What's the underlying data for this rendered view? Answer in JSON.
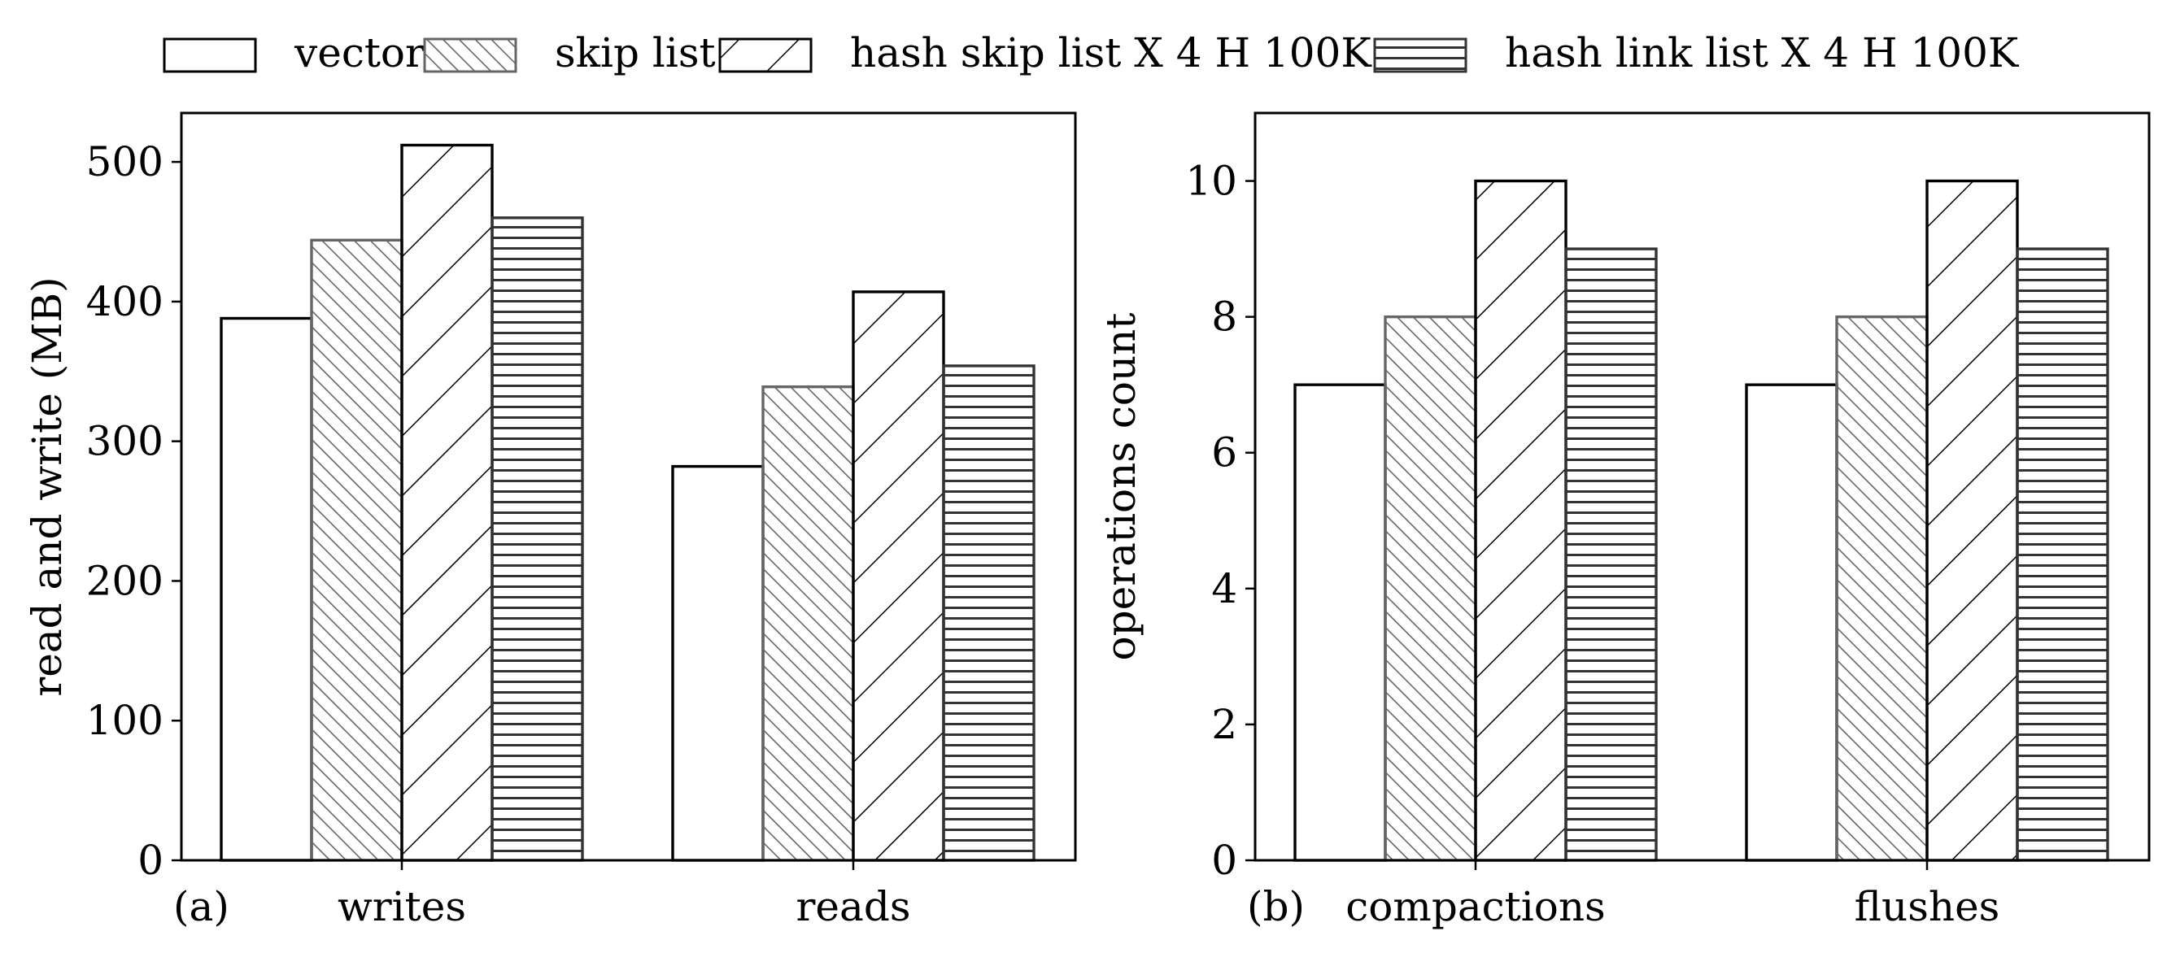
{
  "legend": [
    {
      "name": "vector",
      "pattern": "none",
      "stroke": "#000000"
    },
    {
      "name": "skip list",
      "pattern": "backslash",
      "stroke": "#666666"
    },
    {
      "name": "hash skip list X 4 H 100K",
      "pattern": "slash",
      "stroke": "#000000"
    },
    {
      "name": "hash link list X 4 H 100K",
      "pattern": "horizontal",
      "stroke": "#333333"
    }
  ],
  "chart_data": [
    {
      "type": "bar",
      "panel_label": "(a)",
      "categories": [
        "writes",
        "reads"
      ],
      "ylabel": "read and write (MB)",
      "xlabel": "",
      "ylim": [
        0,
        535
      ],
      "yticks": [
        0,
        100,
        200,
        300,
        400,
        500
      ],
      "series": [
        {
          "name": "vector",
          "values": [
            388,
            282
          ]
        },
        {
          "name": "skip list",
          "values": [
            444,
            339
          ]
        },
        {
          "name": "hash skip list X 4 H 100K",
          "values": [
            512,
            407
          ]
        },
        {
          "name": "hash link list X 4 H 100K",
          "values": [
            460,
            354
          ]
        }
      ]
    },
    {
      "type": "bar",
      "panel_label": "(b)",
      "categories": [
        "compactions",
        "flushes"
      ],
      "ylabel": "operations count",
      "xlabel": "",
      "ylim": [
        0,
        11
      ],
      "yticks": [
        0,
        2,
        4,
        6,
        8,
        10
      ],
      "series": [
        {
          "name": "vector",
          "values": [
            7,
            7
          ]
        },
        {
          "name": "skip list",
          "values": [
            8,
            8
          ]
        },
        {
          "name": "hash skip list X 4 H 100K",
          "values": [
            10,
            10
          ]
        },
        {
          "name": "hash link list X 4 H 100K",
          "values": [
            9,
            9
          ]
        }
      ]
    }
  ]
}
